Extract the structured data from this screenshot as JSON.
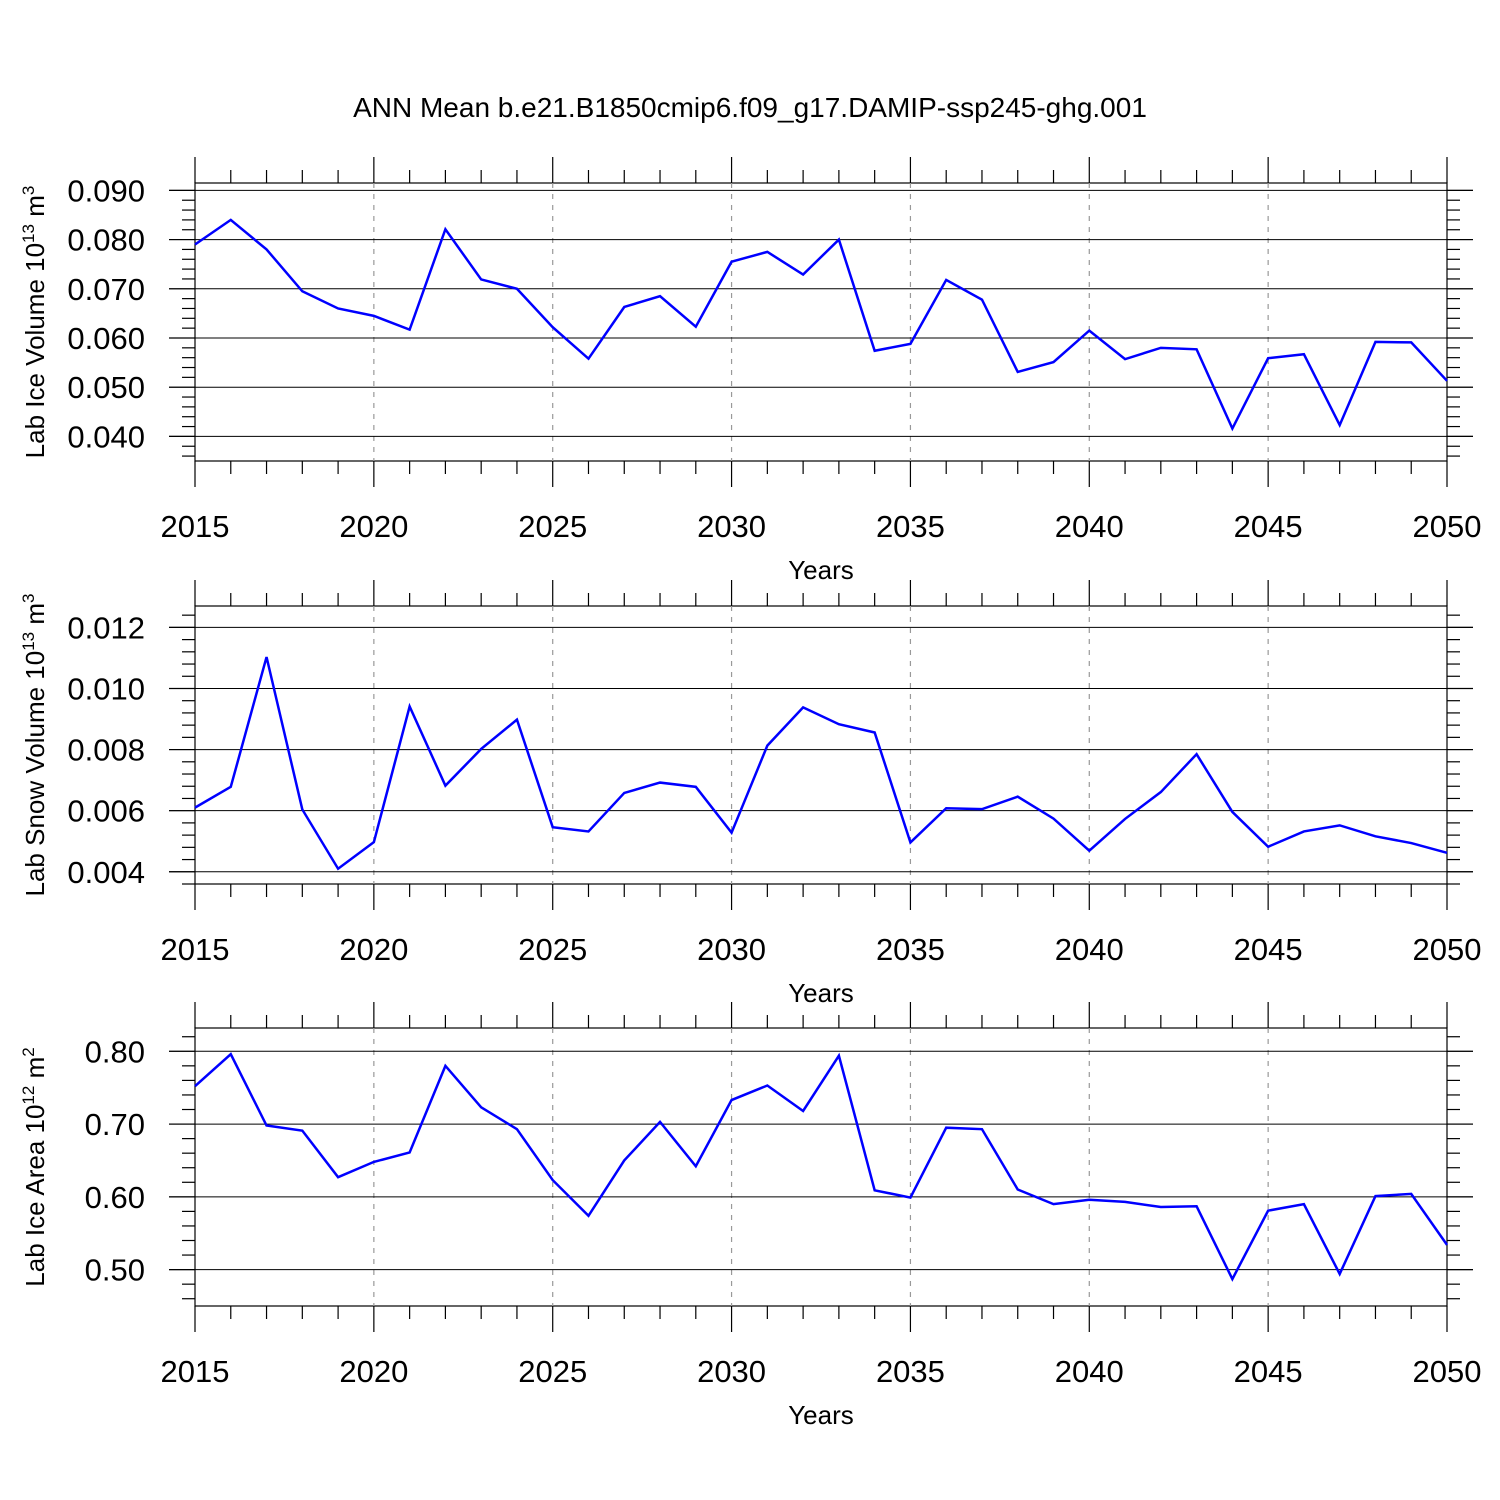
{
  "title": "ANN Mean b.e21.B1850cmip6.f09_g17.DAMIP-ssp245-ghg.001",
  "colors": {
    "line": "#0000ff",
    "axis": "#000000",
    "grid": "#999999"
  },
  "chart_data": [
    {
      "type": "line",
      "title": "",
      "xlabel": "Years",
      "ylabel": {
        "text": "Lab Ice Volume 10",
        "exp": "13",
        "unit": " m",
        "unit_exp": "3"
      },
      "xlim": [
        2015,
        2050
      ],
      "ylim": [
        0.035,
        0.0915
      ],
      "xticks": [
        2015,
        2020,
        2025,
        2030,
        2035,
        2040,
        2045,
        2050
      ],
      "yticks": [
        "0.040",
        "0.050",
        "0.060",
        "0.070",
        "0.080",
        "0.090"
      ],
      "grid": "vertical dashed at major x ticks",
      "series": [
        {
          "x": [
            2015,
            2016,
            2017,
            2018,
            2019,
            2020,
            2021,
            2022,
            2023,
            2024,
            2025,
            2026,
            2027,
            2028,
            2029,
            2030,
            2031,
            2032,
            2033,
            2034,
            2035,
            2036,
            2037,
            2038,
            2039,
            2040,
            2041,
            2042,
            2043,
            2044,
            2045,
            2046,
            2047,
            2048,
            2049,
            2050
          ],
          "values": [
            0.079,
            0.084,
            0.078,
            0.0695,
            0.066,
            0.0645,
            0.0617,
            0.0821,
            0.0719,
            0.07,
            0.0622,
            0.0558,
            0.0663,
            0.0685,
            0.0623,
            0.0755,
            0.0775,
            0.0729,
            0.08,
            0.0574,
            0.0588,
            0.0718,
            0.0678,
            0.0531,
            0.0551,
            0.0615,
            0.0557,
            0.058,
            0.0577,
            0.0416,
            0.0559,
            0.0567,
            0.0423,
            0.0592,
            0.0591,
            0.0513
          ]
        }
      ]
    },
    {
      "type": "line",
      "title": "",
      "xlabel": "Years",
      "ylabel": {
        "text": "Lab Snow Volume 10",
        "exp": "13",
        "unit": " m",
        "unit_exp": "3"
      },
      "xlim": [
        2015,
        2050
      ],
      "ylim": [
        0.0036,
        0.0127
      ],
      "xticks": [
        2015,
        2020,
        2025,
        2030,
        2035,
        2040,
        2045,
        2050
      ],
      "yticks": [
        "0.004",
        "0.006",
        "0.008",
        "0.010",
        "0.012"
      ],
      "grid": "vertical dashed at major x ticks",
      "series": [
        {
          "x": [
            2015,
            2016,
            2017,
            2018,
            2019,
            2020,
            2021,
            2022,
            2023,
            2024,
            2025,
            2026,
            2027,
            2028,
            2029,
            2030,
            2031,
            2032,
            2033,
            2034,
            2035,
            2036,
            2037,
            2038,
            2039,
            2040,
            2041,
            2042,
            2043,
            2044,
            2045,
            2046,
            2047,
            2048,
            2049,
            2050
          ],
          "values": [
            0.0061,
            0.00678,
            0.01103,
            0.00604,
            0.0041,
            0.00497,
            0.00941,
            0.00682,
            0.00802,
            0.00898,
            0.00546,
            0.00532,
            0.00658,
            0.00692,
            0.00678,
            0.00528,
            0.00813,
            0.00938,
            0.00883,
            0.00856,
            0.00496,
            0.00608,
            0.00605,
            0.00646,
            0.00574,
            0.00469,
            0.00573,
            0.00661,
            0.00785,
            0.00596,
            0.00482,
            0.00532,
            0.00552,
            0.00516,
            0.00494,
            0.00462
          ]
        }
      ]
    },
    {
      "type": "line",
      "title": "",
      "xlabel": "Years",
      "ylabel": {
        "text": "Lab Ice Area 10",
        "exp": "12",
        "unit": " m",
        "unit_exp": "2"
      },
      "xlim": [
        2015,
        2050
      ],
      "ylim": [
        0.45,
        0.832
      ],
      "xticks": [
        2015,
        2020,
        2025,
        2030,
        2035,
        2040,
        2045,
        2050
      ],
      "yticks": [
        "0.50",
        "0.60",
        "0.70",
        "0.80"
      ],
      "grid": "vertical dashed at major x ticks",
      "series": [
        {
          "x": [
            2015,
            2016,
            2017,
            2018,
            2019,
            2020,
            2021,
            2022,
            2023,
            2024,
            2025,
            2026,
            2027,
            2028,
            2029,
            2030,
            2031,
            2032,
            2033,
            2034,
            2035,
            2036,
            2037,
            2038,
            2039,
            2040,
            2041,
            2042,
            2043,
            2044,
            2045,
            2046,
            2047,
            2048,
            2049,
            2050
          ],
          "values": [
            0.752,
            0.796,
            0.698,
            0.691,
            0.627,
            0.648,
            0.661,
            0.78,
            0.723,
            0.693,
            0.623,
            0.574,
            0.65,
            0.703,
            0.642,
            0.733,
            0.753,
            0.718,
            0.794,
            0.609,
            0.599,
            0.695,
            0.693,
            0.61,
            0.59,
            0.596,
            0.593,
            0.586,
            0.587,
            0.487,
            0.581,
            0.59,
            0.494,
            0.601,
            0.604,
            0.534
          ]
        }
      ]
    }
  ]
}
